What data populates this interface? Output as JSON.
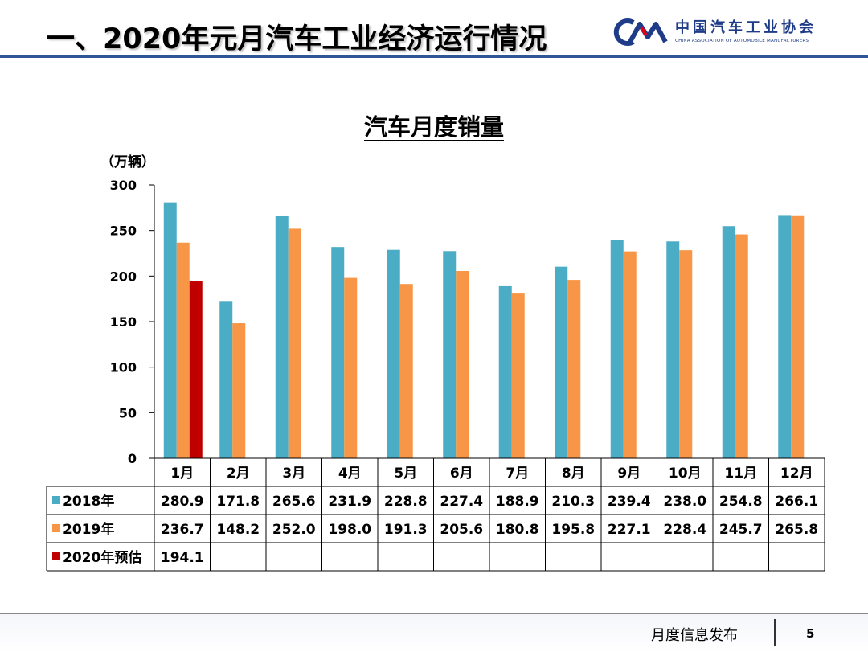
{
  "slide": {
    "title": "一、2020年元月汽车工业经济运行情况",
    "footer_label": "月度信息发布",
    "page_number": "5"
  },
  "logo": {
    "mark_text": "CAM",
    "name_cn": "中国汽车工业协会",
    "name_en": "CHINA ASSOCIATION OF AUTOMOBILE MANUFACTURERS"
  },
  "colors": {
    "series_2018": "#4bacc6",
    "series_2019": "#f79646",
    "series_2020": "#c00000",
    "header_line": "#2f5597"
  },
  "chart_data": {
    "type": "bar",
    "title": "汽车月度销量",
    "ylabel": "（万辆）",
    "ylim": [
      0,
      300
    ],
    "yticks": [
      0,
      50,
      100,
      150,
      200,
      250,
      300
    ],
    "categories": [
      "1月",
      "2月",
      "3月",
      "4月",
      "5月",
      "6月",
      "7月",
      "8月",
      "9月",
      "10月",
      "11月",
      "12月"
    ],
    "series": [
      {
        "name": "2018年",
        "color": "#4bacc6",
        "values": [
          280.9,
          171.8,
          265.6,
          231.9,
          228.8,
          227.4,
          188.9,
          210.3,
          239.4,
          238.0,
          254.8,
          266.1
        ]
      },
      {
        "name": "2019年",
        "color": "#f79646",
        "values": [
          236.7,
          148.2,
          252.0,
          198.0,
          191.3,
          205.6,
          180.8,
          195.8,
          227.1,
          228.4,
          245.7,
          265.8
        ]
      },
      {
        "name": "2020年预估",
        "color": "#c00000",
        "values": [
          194.1,
          null,
          null,
          null,
          null,
          null,
          null,
          null,
          null,
          null,
          null,
          null
        ]
      }
    ],
    "table_rows": [
      {
        "label": "2018年",
        "cells": [
          "280.9",
          "171.8",
          "265.6",
          "231.9",
          "228.8",
          "227.4",
          "188.9",
          "210.3",
          "239.4",
          "238.0",
          "254.8",
          "266.1"
        ]
      },
      {
        "label": "2019年",
        "cells": [
          "236.7",
          "148.2",
          "252.0",
          "198.0",
          "191.3",
          "205.6",
          "180.8",
          "195.8",
          "227.1",
          "228.4",
          "245.7",
          "265.8"
        ]
      },
      {
        "label": "2020年预估",
        "cells": [
          "194.1",
          "",
          "",
          "",
          "",
          "",
          "",
          "",
          "",
          "",
          "",
          ""
        ]
      }
    ]
  }
}
